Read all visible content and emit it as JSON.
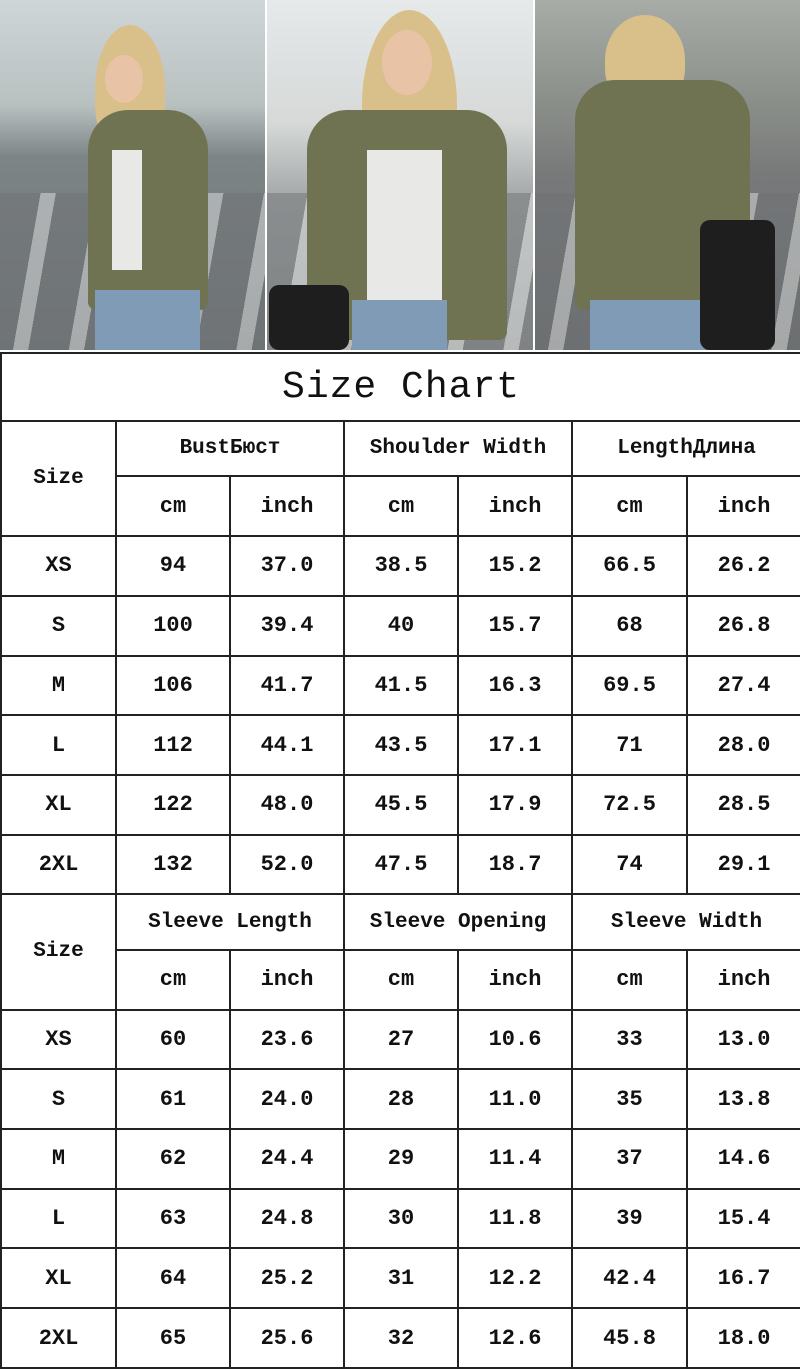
{
  "title": "Size Chart",
  "size_label": "Size",
  "sections": [
    {
      "groups": [
        "BustБюст",
        "Shoulder Width",
        "LengthДлина"
      ],
      "units": [
        "cm",
        "inch",
        "cm",
        "inch",
        "cm",
        "inch"
      ],
      "rows": [
        [
          "XS",
          "94",
          "37.0",
          "38.5",
          "15.2",
          "66.5",
          "26.2"
        ],
        [
          "S",
          "100",
          "39.4",
          "40",
          "15.7",
          "68",
          "26.8"
        ],
        [
          "M",
          "106",
          "41.7",
          "41.5",
          "16.3",
          "69.5",
          "27.4"
        ],
        [
          "L",
          "112",
          "44.1",
          "43.5",
          "17.1",
          "71",
          "28.0"
        ],
        [
          "XL",
          "122",
          "48.0",
          "45.5",
          "17.9",
          "72.5",
          "28.5"
        ],
        [
          "2XL",
          "132",
          "52.0",
          "47.5",
          "18.7",
          "74",
          "29.1"
        ]
      ]
    },
    {
      "groups": [
        "Sleeve Length",
        "Sleeve Opening",
        "Sleeve Width"
      ],
      "units": [
        "cm",
        "inch",
        "cm",
        "inch",
        "cm",
        "inch"
      ],
      "rows": [
        [
          "XS",
          "60",
          "23.6",
          "27",
          "10.6",
          "33",
          "13.0"
        ],
        [
          "S",
          "61",
          "24.0",
          "28",
          "11.0",
          "35",
          "13.8"
        ],
        [
          "M",
          "62",
          "24.4",
          "29",
          "11.4",
          "37",
          "14.6"
        ],
        [
          "L",
          "63",
          "24.8",
          "30",
          "11.8",
          "39",
          "15.4"
        ],
        [
          "XL",
          "64",
          "25.2",
          "31",
          "12.2",
          "42.4",
          "16.7"
        ],
        [
          "2XL",
          "65",
          "25.6",
          "32",
          "12.6",
          "45.8",
          "18.0"
        ]
      ]
    }
  ]
}
